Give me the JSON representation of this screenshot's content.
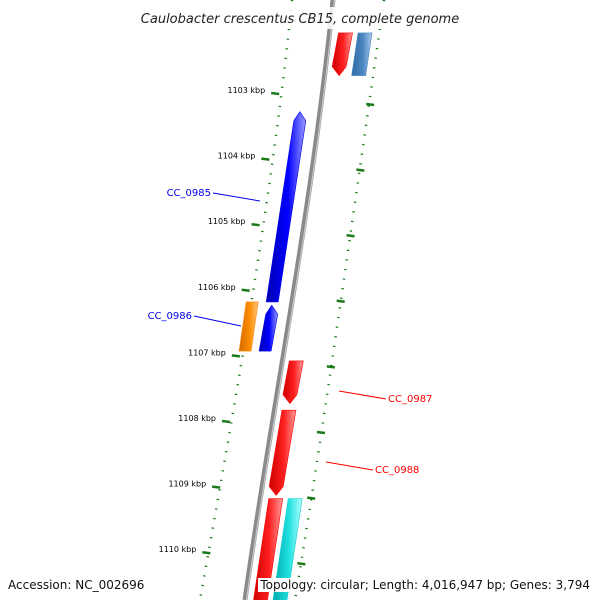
{
  "title": "Caulobacter crescentus CB15, complete genome",
  "footer": {
    "accession": "Accession: NC_002696",
    "topology": "Topology: circular; Length: 4,016,947 bp; Genes: 3,794"
  },
  "colors": {
    "backbone": "#8a8a8a",
    "tick": "#1a7a1a",
    "red": "#ff0000",
    "blue": "#0000ee",
    "orange": "#ff8800",
    "cyan": "#11d0d0",
    "steelblue": "#4a86c0"
  },
  "ticks": [
    {
      "label": "1103 kbp",
      "pos": 1103
    },
    {
      "label": "1104 kbp",
      "pos": 1104
    },
    {
      "label": "1105 kbp",
      "pos": 1105
    },
    {
      "label": "1106 kbp",
      "pos": 1106
    },
    {
      "label": "1107 kbp",
      "pos": 1107
    },
    {
      "label": "1108 kbp",
      "pos": 1108
    },
    {
      "label": "1109 kbp",
      "pos": 1109
    },
    {
      "label": "1110 kbp",
      "pos": 1110
    }
  ],
  "genes": [
    {
      "strand": "forward",
      "color": "red",
      "start": 1102.1,
      "end": 1102.75,
      "arrow": "end"
    },
    {
      "strand": "outer",
      "color": "steelblue",
      "start": 1102.1,
      "end": 1102.75,
      "arrow": "none"
    },
    {
      "strand": "inner",
      "color": "blue",
      "start": 1103.3,
      "end": 1106.2,
      "arrow": "start",
      "label": "CC_0985"
    },
    {
      "strand": "inner-outer",
      "color": "orange",
      "start": 1106.2,
      "end": 1106.95,
      "arrow": "none",
      "label": "CC_0986"
    },
    {
      "strand": "inner",
      "color": "blue",
      "start": 1106.25,
      "end": 1106.95,
      "arrow": "start"
    },
    {
      "strand": "forward",
      "color": "red",
      "start": 1107.1,
      "end": 1107.75,
      "arrow": "end",
      "label": "CC_0987"
    },
    {
      "strand": "forward",
      "color": "red",
      "start": 1107.85,
      "end": 1109.15,
      "arrow": "end",
      "label": "CC_0988"
    },
    {
      "strand": "forward",
      "color": "red",
      "start": 1109.2,
      "end": 1110.8,
      "arrow": "none"
    },
    {
      "strand": "outer",
      "color": "cyan",
      "start": 1109.2,
      "end": 1110.8,
      "arrow": "none"
    }
  ]
}
